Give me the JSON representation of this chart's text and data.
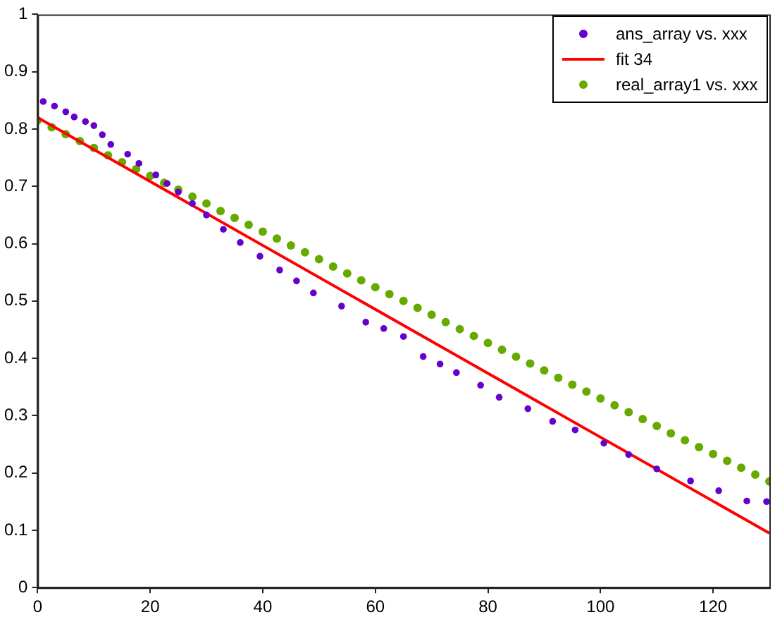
{
  "chart_data": {
    "type": "scatter",
    "xlim": [
      0,
      130
    ],
    "xticks": [
      0,
      20,
      40,
      60,
      80,
      100,
      120
    ],
    "ylim": [
      0,
      1
    ],
    "yticks": [
      0,
      0.1,
      0.2,
      0.3,
      0.4,
      0.5,
      0.6,
      0.7,
      0.8,
      0.9,
      1
    ],
    "grid": false,
    "legend": "top right",
    "series": [
      {
        "name": "ans_array vs. xxx",
        "marker": "circle",
        "color": "#6600cc",
        "x": [
          1,
          3,
          5,
          6.5,
          8.5,
          10,
          11.5,
          13,
          16,
          18,
          21,
          23,
          25,
          27.5,
          30,
          33,
          36,
          39.5,
          43,
          46,
          49,
          54,
          58.3,
          61.5,
          65,
          68.5,
          71.5,
          74.4,
          78.7,
          82,
          87.1,
          91.5,
          95.5,
          100.6,
          105,
          110,
          116,
          121,
          126,
          129.5
        ],
        "values": [
          0.848,
          0.84,
          0.83,
          0.821,
          0.813,
          0.806,
          0.79,
          0.773,
          0.756,
          0.74,
          0.72,
          0.705,
          0.69,
          0.67,
          0.65,
          0.625,
          0.602,
          0.578,
          0.554,
          0.535,
          0.514,
          0.491,
          0.463,
          0.452,
          0.438,
          0.403,
          0.39,
          0.375,
          0.353,
          0.332,
          0.312,
          0.29,
          0.275,
          0.252,
          0.232,
          0.207,
          0.186,
          0.169,
          0.151,
          0.15
        ]
      },
      {
        "name": "fit 34",
        "type": "line",
        "color": "#ff0000",
        "x": [
          0,
          130
        ],
        "values": [
          0.82,
          0.095
        ]
      },
      {
        "name": "real_array1 vs. xxx",
        "marker": "circle",
        "color": "#66aa00",
        "x": [
          0,
          2.5,
          5,
          7.5,
          10,
          12.5,
          15,
          17.5,
          20,
          22.5,
          25,
          27.5,
          30,
          32.5,
          35,
          37.5,
          40,
          42.5,
          45,
          47.5,
          50,
          52.5,
          55,
          57.5,
          60,
          62.5,
          65,
          67.5,
          70,
          72.5,
          75,
          77.5,
          80,
          82.5,
          85,
          87.5,
          90,
          92.5,
          95,
          97.5,
          100,
          102.5,
          105,
          107.5,
          110,
          112.5,
          115,
          117.5,
          120,
          122.5,
          125,
          127.5,
          130
        ],
        "values": [
          0.815,
          0.803,
          0.791,
          0.779,
          0.767,
          0.754,
          0.742,
          0.73,
          0.718,
          0.706,
          0.694,
          0.682,
          0.67,
          0.657,
          0.645,
          0.633,
          0.621,
          0.609,
          0.597,
          0.585,
          0.573,
          0.56,
          0.548,
          0.536,
          0.524,
          0.512,
          0.5,
          0.488,
          0.476,
          0.463,
          0.451,
          0.439,
          0.427,
          0.415,
          0.403,
          0.391,
          0.379,
          0.366,
          0.354,
          0.342,
          0.33,
          0.318,
          0.306,
          0.294,
          0.282,
          0.269,
          0.257,
          0.245,
          0.233,
          0.221,
          0.209,
          0.197,
          0.185
        ]
      }
    ]
  }
}
